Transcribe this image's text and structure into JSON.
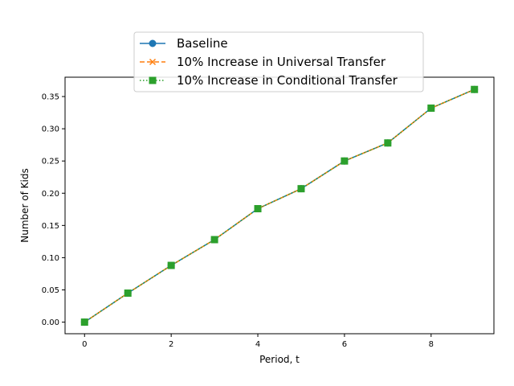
{
  "chart_data": {
    "type": "line",
    "xlabel": "Period, t",
    "ylabel": "Number of Kids",
    "x": [
      0,
      1,
      2,
      3,
      4,
      5,
      6,
      7,
      8,
      9
    ],
    "xlim": [
      -0.45,
      9.45
    ],
    "ylim": [
      -0.018,
      0.38
    ],
    "xticks": [
      0,
      2,
      4,
      6,
      8
    ],
    "yticks": [
      0.0,
      0.05,
      0.1,
      0.15,
      0.2,
      0.25,
      0.3,
      0.35
    ],
    "xtick_labels": [
      "0",
      "2",
      "4",
      "6",
      "8"
    ],
    "ytick_labels": [
      "0.00",
      "0.05",
      "0.10",
      "0.15",
      "0.20",
      "0.25",
      "0.30",
      "0.35"
    ],
    "grid": false,
    "legend_position": "top-center",
    "series": [
      {
        "name": "Baseline",
        "values": [
          0.0,
          0.045,
          0.088,
          0.128,
          0.176,
          0.207,
          0.25,
          0.278,
          0.332,
          0.361
        ],
        "color": "#1f77b4",
        "linestyle": "solid",
        "marker": "circle"
      },
      {
        "name": "10% Increase in Universal Transfer",
        "values": [
          0.0,
          0.045,
          0.088,
          0.128,
          0.176,
          0.207,
          0.25,
          0.278,
          0.332,
          0.361
        ],
        "color": "#ff7f0e",
        "linestyle": "dashed",
        "marker": "x"
      },
      {
        "name": "10% Increase in Conditional Transfer",
        "values": [
          0.0,
          0.045,
          0.088,
          0.128,
          0.176,
          0.207,
          0.25,
          0.278,
          0.332,
          0.361
        ],
        "color": "#2ca02c",
        "linestyle": "dotted",
        "marker": "square"
      }
    ]
  }
}
